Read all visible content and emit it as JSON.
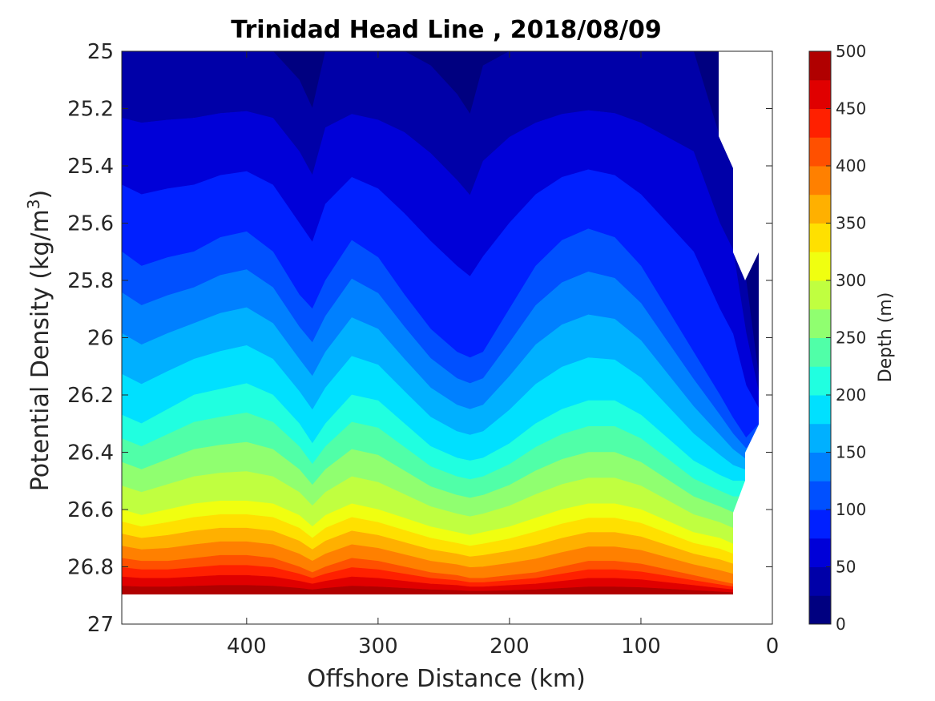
{
  "chart_data": {
    "type": "contourf",
    "title": "Trinidad Head Line , 2018/08/09",
    "xlabel": "Offshore Distance (km)",
    "ylabel": "Potential Density (kg/m",
    "ylabel_sup": "3",
    "ylabel_end": ")",
    "xlim": [
      495,
      0
    ],
    "ylim": [
      25,
      27
    ],
    "x_reversed": true,
    "y_reversed": true,
    "xticks": [
      400,
      300,
      200,
      100,
      0
    ],
    "xtick_labels": [
      "400",
      "300",
      "200",
      "100",
      "0"
    ],
    "yticks": [
      25,
      25.2,
      25.4,
      25.6,
      25.8,
      26,
      26.2,
      26.4,
      26.6,
      26.8,
      27
    ],
    "ytick_labels": [
      "25",
      "25.2",
      "25.4",
      "25.6",
      "25.8",
      "26",
      "26.2",
      "26.4",
      "26.6",
      "26.8",
      "27"
    ],
    "colorbar": {
      "label": "Depth (m)",
      "min": 0,
      "max": 500,
      "ticks": [
        0,
        50,
        100,
        150,
        200,
        250,
        300,
        350,
        400,
        450,
        500
      ],
      "tick_labels": [
        "0",
        "50",
        "100",
        "150",
        "200",
        "250",
        "300",
        "350",
        "400",
        "450",
        "500"
      ],
      "colors": [
        "#000080",
        "#0000a8",
        "#0000d8",
        "#0020ff",
        "#0050ff",
        "#0080ff",
        "#00b0ff",
        "#00e0ff",
        "#20ffe0",
        "#50ffa8",
        "#90ff70",
        "#c0ff40",
        "#f0ff10",
        "#ffe000",
        "#ffb000",
        "#ff8000",
        "#ff5000",
        "#ff2000",
        "#e00000",
        "#b00000"
      ]
    },
    "contour_levels": [
      25,
      50,
      75,
      100,
      125,
      150,
      175,
      200,
      225,
      250,
      275,
      300,
      325,
      350,
      375,
      400,
      425,
      450,
      475
    ],
    "x": [
      495,
      480,
      460,
      440,
      420,
      400,
      380,
      360,
      350,
      340,
      320,
      300,
      280,
      260,
      240,
      230,
      220,
      200,
      180,
      160,
      140,
      120,
      100,
      80,
      60,
      40,
      30,
      20,
      10
    ],
    "isopycnal_25m": [
      25.0,
      25.0,
      25.0,
      25.0,
      25.0,
      25.0,
      25.0,
      25.1,
      25.2,
      25.0,
      25.0,
      25.0,
      25.0,
      25.05,
      25.15,
      25.22,
      25.05,
      25.0,
      25.0,
      25.0,
      25.0,
      25.0,
      25.0,
      25.0,
      25.0,
      25.3,
      25.4,
      25.8,
      26.15
    ],
    "isopycnal_100m": [
      25.7,
      25.75,
      25.72,
      25.7,
      25.65,
      25.63,
      25.7,
      25.85,
      25.9,
      25.8,
      25.66,
      25.72,
      25.85,
      25.97,
      26.05,
      26.07,
      26.05,
      25.9,
      25.75,
      25.66,
      25.62,
      25.65,
      25.75,
      25.9,
      26.05,
      26.2,
      26.28,
      26.35,
      26.3
    ],
    "isopycnal_200m": [
      26.27,
      26.3,
      26.25,
      26.2,
      26.18,
      26.16,
      26.2,
      26.3,
      26.37,
      26.3,
      26.2,
      26.22,
      26.3,
      26.38,
      26.42,
      26.43,
      26.42,
      26.37,
      26.3,
      26.25,
      26.22,
      26.22,
      26.27,
      26.35,
      26.43,
      26.48,
      26.5,
      26.5,
      26.5
    ],
    "isopycnal_300m": [
      26.6,
      26.62,
      26.6,
      26.58,
      26.57,
      26.57,
      26.58,
      26.62,
      26.66,
      26.62,
      26.58,
      26.6,
      26.63,
      26.66,
      26.68,
      26.69,
      26.68,
      26.66,
      26.63,
      26.6,
      26.58,
      26.58,
      26.6,
      26.64,
      26.68,
      26.7,
      26.72,
      null,
      null
    ],
    "isopycnal_400m": [
      26.77,
      26.78,
      26.78,
      26.77,
      26.76,
      26.76,
      26.77,
      26.8,
      26.82,
      26.8,
      26.77,
      26.78,
      26.8,
      26.82,
      26.83,
      26.84,
      26.84,
      26.83,
      26.82,
      26.8,
      26.78,
      26.78,
      26.79,
      26.81,
      26.83,
      26.85,
      26.86,
      null,
      null
    ],
    "data_bottom_density": 26.9,
    "data_right_edge_km": 30
  }
}
